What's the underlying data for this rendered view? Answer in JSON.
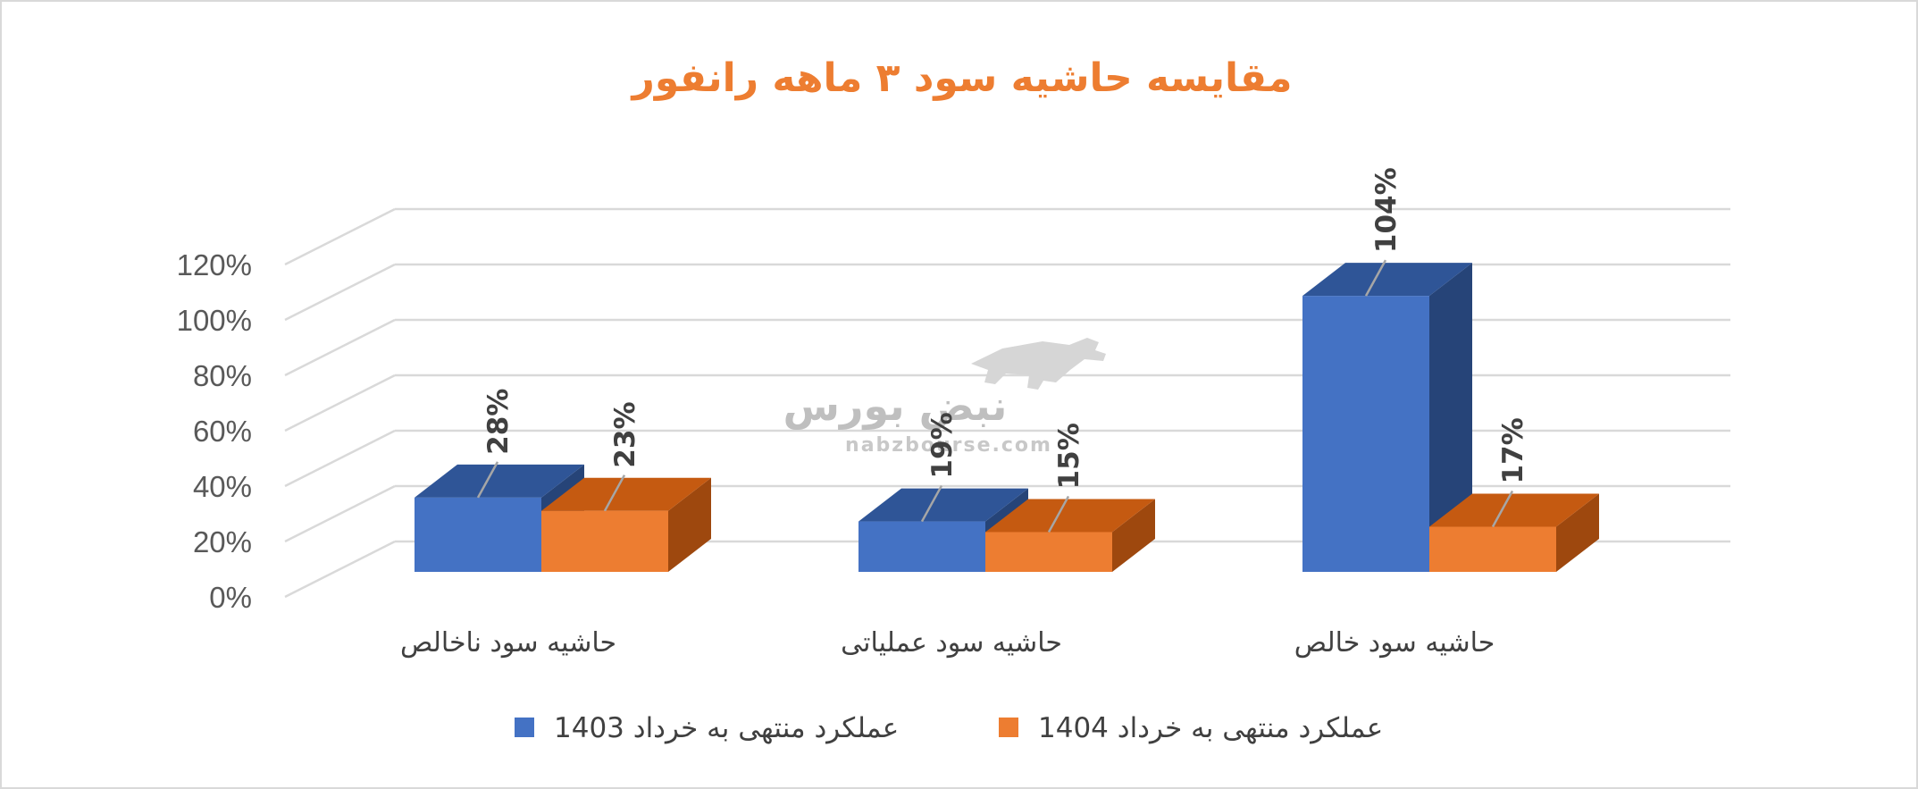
{
  "chart_data": {
    "type": "bar",
    "title": "مقایسه حاشیه سود ۳ ماهه رانفور",
    "xlabel": "",
    "ylabel": "",
    "ylim": [
      0,
      120
    ],
    "y_ticks": [
      "0%",
      "20%",
      "40%",
      "60%",
      "80%",
      "100%",
      "120%"
    ],
    "y_tick_values": [
      0,
      20,
      40,
      60,
      80,
      100,
      120
    ],
    "categories": [
      "حاشیه سود ناخالص",
      "حاشیه سود عملیاتی",
      "حاشیه سود خالص"
    ],
    "series": [
      {
        "name": "عملکرد منتهی به خرداد 1403",
        "values": [
          28,
          19,
          104
        ],
        "labels": [
          "28%",
          "19%",
          "104%"
        ]
      },
      {
        "name": "عملکرد منتهی به خرداد 1404",
        "values": [
          23,
          15,
          17
        ],
        "labels": [
          "23%",
          "15%",
          "17%"
        ]
      }
    ],
    "grid": true,
    "legend_position": "bottom",
    "style": "3d-clustered-column"
  },
  "colors": {
    "series_1_front": "#4472c4",
    "series_1_top": "#2f5597",
    "series_1_side": "#264478",
    "series_2_front": "#ed7d31",
    "series_2_top": "#c55a11",
    "series_2_side": "#9e480e",
    "title": "#ed7d31",
    "grid": "#d9d9d9"
  },
  "watermark": {
    "text": "نبض بورس",
    "url": "nabzbourse.com",
    "icon": "bull-icon"
  }
}
